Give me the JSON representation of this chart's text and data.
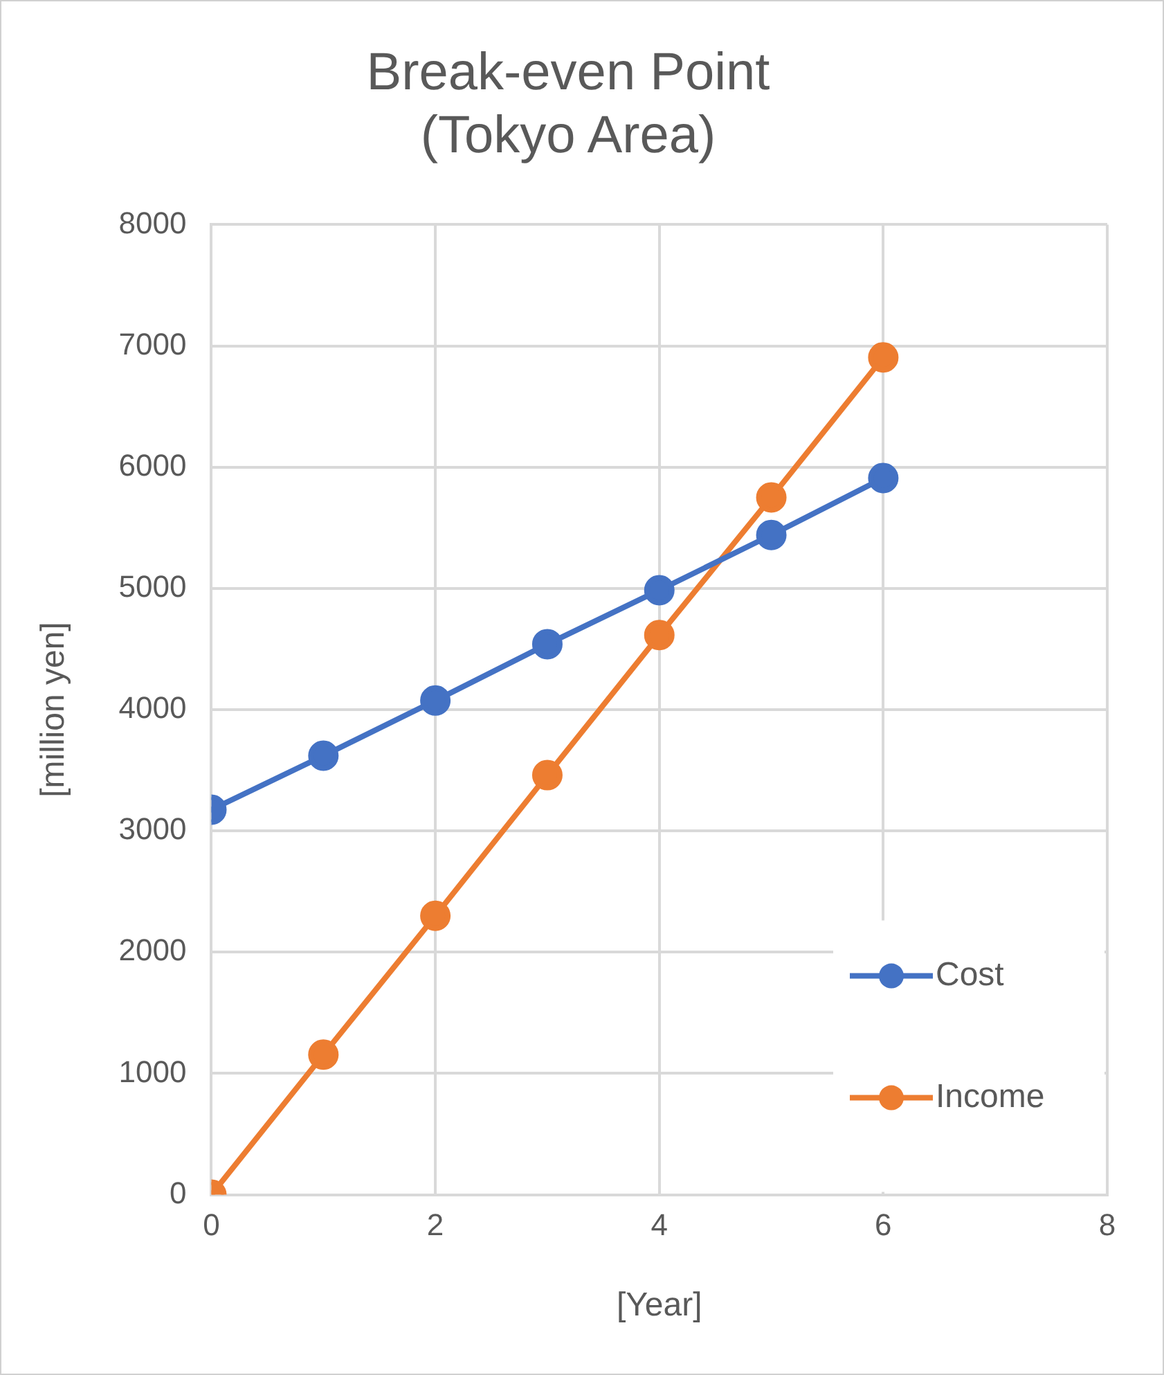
{
  "chart_data": {
    "type": "line",
    "title": "Break-even Point\n(Tokyo Area)",
    "xlabel": "[Year]",
    "ylabel": "[million yen]",
    "x": [
      0,
      1,
      2,
      3,
      4,
      5,
      6
    ],
    "series": [
      {
        "name": "Cost",
        "color": "#4472c4",
        "values": [
          3175,
          3620,
          4075,
          4540,
          4985,
          5440,
          5910
        ]
      },
      {
        "name": "Income",
        "color": "#ed7d31",
        "values": [
          0,
          1155,
          2300,
          3460,
          4615,
          5750,
          6905
        ]
      }
    ],
    "xlim": [
      0,
      8
    ],
    "xticks": [
      0,
      2,
      4,
      6,
      8
    ],
    "ylim": [
      0,
      8000
    ],
    "yticks": [
      0,
      1000,
      2000,
      3000,
      4000,
      5000,
      6000,
      7000,
      8000
    ],
    "grid": true,
    "legend": "bottom right",
    "marker": "circle",
    "line_style": "solid"
  }
}
